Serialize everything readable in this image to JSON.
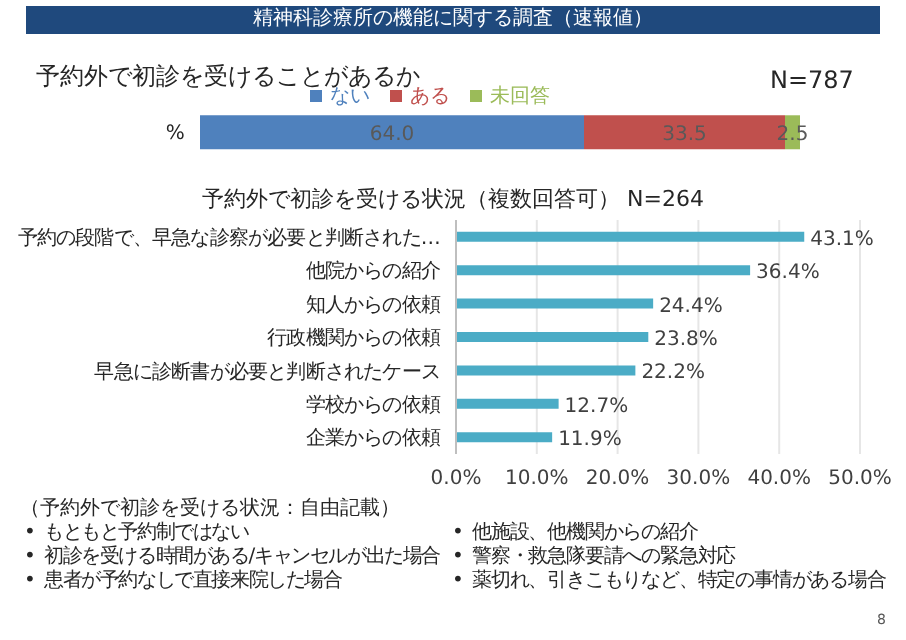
{
  "chart_data": [
    {
      "type": "bar",
      "orientation": "horizontal",
      "stacked": true,
      "title": "予約外で初診を受けることがあるか",
      "annotations": [
        "精神科診療所の機能に関する調査（速報値）",
        "N=787"
      ],
      "categories": [
        "%"
      ],
      "series": [
        {
          "name": "ない",
          "color": "#4f81bd",
          "values": [
            64.0
          ],
          "value_labels": [
            "64.0"
          ]
        },
        {
          "name": "ある",
          "color": "#c0504d",
          "values": [
            33.5
          ],
          "value_labels": [
            "33.5"
          ]
        },
        {
          "name": "未回答",
          "color": "#9bbb59",
          "values": [
            2.5
          ],
          "value_labels": [
            "2.5"
          ]
        }
      ],
      "xlim": [
        0,
        100
      ],
      "tick_labels": "y",
      "legend": "top",
      "grid": false
    },
    {
      "type": "bar",
      "orientation": "horizontal",
      "title": "予約外で初診を受ける状況（複数回答可） N=264",
      "categories": [
        "予約の段階で、早急な診察が必要と判断された…",
        "他院からの紹介",
        "知人からの依頼",
        "行政機関からの依頼",
        "早急に診断書が必要と判断されたケース",
        "学校からの依頼",
        "企業からの依頼"
      ],
      "values": [
        43.1,
        36.4,
        24.4,
        23.8,
        22.2,
        12.7,
        11.9
      ],
      "value_labels": [
        "43.1%",
        "36.4%",
        "24.4%",
        "23.8%",
        "22.2%",
        "12.7%",
        "11.9%"
      ],
      "color": "#4bacc6",
      "xlim": [
        0,
        50
      ],
      "xticks": [
        {
          "value": 0,
          "label": "0.0%"
        },
        {
          "value": 10,
          "label": "10.0%"
        },
        {
          "value": 20,
          "label": "20.0%"
        },
        {
          "value": 30,
          "label": "30.0%"
        },
        {
          "value": 40,
          "label": "40.0%"
        },
        {
          "value": 50,
          "label": "50.0%"
        }
      ],
      "grid": "x",
      "legend": false,
      "annotations": [
        "（予約外で初診を受ける状況：自由記載）",
        "• もともと予約制ではない",
        "• 初診を受ける時間がある/キャンセルが出た場合",
        "• 患者が予約なしで直接来院した場合",
        "• 他施設、他機関からの紹介",
        "• 警察・救急隊要請への緊急対応",
        "• 薬切れ、引きこもりなど、特定の事情がある場合",
        "8"
      ]
    }
  ]
}
